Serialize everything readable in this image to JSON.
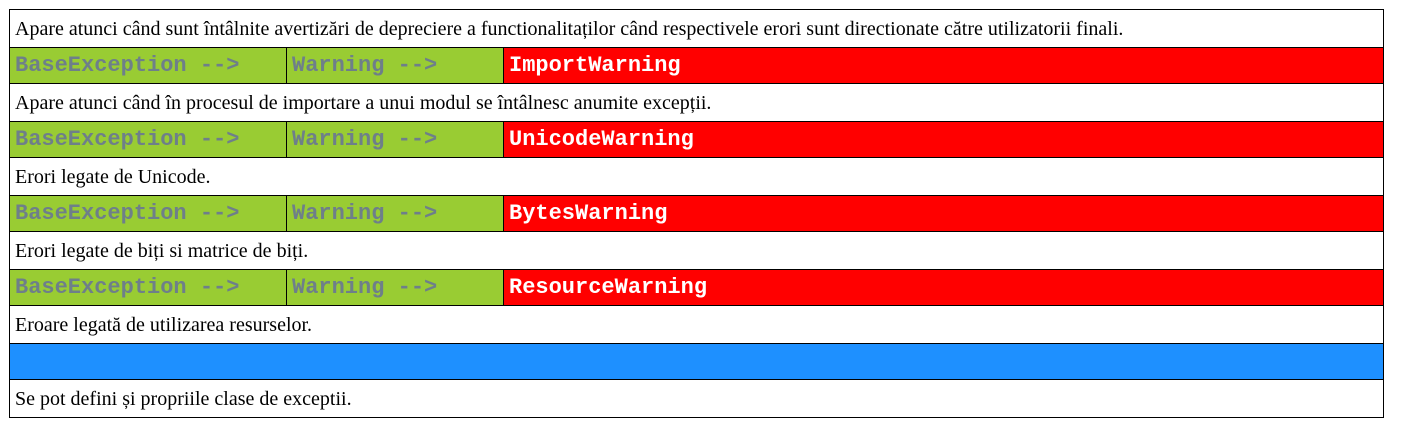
{
  "rows": [
    {
      "type": "desc",
      "text": "Apare atunci când sunt întâlnite avertizări de depreciere a functionalitaților când respectivele erori sunt directionate către utilizatorii finali."
    },
    {
      "type": "chain",
      "base": "BaseException -->",
      "parent": "Warning -->",
      "leaf": "ImportWarning"
    },
    {
      "type": "desc",
      "text": "Apare atunci când în procesul de importare a unui modul se întâlnesc anumite excepții."
    },
    {
      "type": "chain",
      "base": "BaseException -->",
      "parent": "Warning -->",
      "leaf": "UnicodeWarning"
    },
    {
      "type": "desc",
      "text": "Erori legate de Unicode."
    },
    {
      "type": "chain",
      "base": "BaseException -->",
      "parent": "Warning -->",
      "leaf": "BytesWarning"
    },
    {
      "type": "desc",
      "text": "Erori legate de biți si matrice de biți."
    },
    {
      "type": "chain",
      "base": "BaseException -->",
      "parent": "Warning -->",
      "leaf": "ResourceWarning"
    },
    {
      "type": "desc",
      "text": "Eroare legată de utilizarea resurselor."
    },
    {
      "type": "blue"
    },
    {
      "type": "desc",
      "text": "Se pot defini și propriile clase de exceptii."
    }
  ],
  "colors": {
    "ancestor_bg": "#99cc33",
    "ancestor_text": "#6e7f8a",
    "leaf_bg": "#ff0000",
    "leaf_text": "#ffffff",
    "separator_bg": "#1e90ff"
  }
}
